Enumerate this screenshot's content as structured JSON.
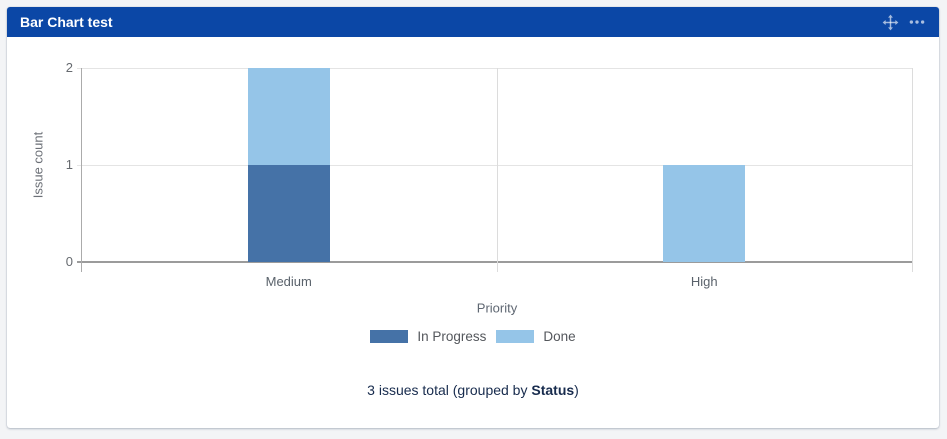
{
  "page": {
    "background_color": "#f3f4f6"
  },
  "gadget": {
    "title": "Bar Chart test",
    "header_color": "#0b47a6",
    "header_icons": [
      {
        "name": "move-icon"
      },
      {
        "name": "more-options-icon"
      }
    ],
    "footer": {
      "prefix": "3 issues total (grouped by ",
      "bold": "Status",
      "suffix": ")"
    }
  },
  "chart_data": {
    "type": "bar",
    "stacked": true,
    "title": "",
    "categories": [
      "Medium",
      "High"
    ],
    "series": [
      {
        "name": "In Progress",
        "color": "#4572a7",
        "values": [
          1,
          0
        ]
      },
      {
        "name": "Done",
        "color": "#95c5e8",
        "values": [
          1,
          1
        ]
      }
    ],
    "xlabel": "Priority",
    "ylabel": "Issue count",
    "yticks": [
      0,
      1,
      2
    ],
    "ylim": [
      0,
      2
    ],
    "legend_position": "bottom",
    "grid": true
  }
}
